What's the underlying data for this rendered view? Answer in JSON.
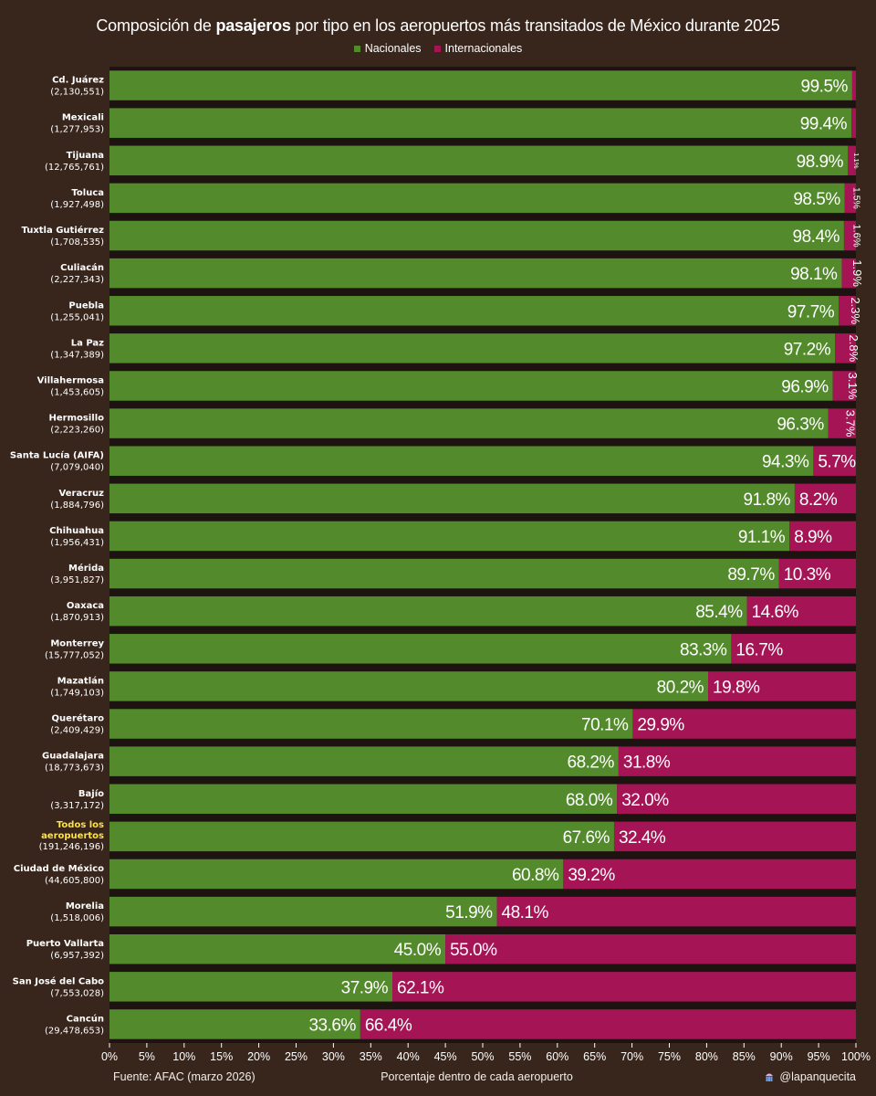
{
  "title": {
    "before": "Composición de ",
    "bold": "pasajeros",
    "after": " por tipo en los aeropuertos más transitados de México durante 2025"
  },
  "legend": {
    "nacionales": "Nacionales",
    "internacionales": "Internacionales"
  },
  "colors": {
    "background": "#38251b",
    "plot_background": "#1d1310",
    "nacionales": "#538a2c",
    "internacionales": "#a51556",
    "highlight": "#ffe23b"
  },
  "footer": {
    "source": "Fuente: AFAC (marzo 2026)",
    "xlabel": "Porcentaje dentro de cada aeropuerto",
    "credit": "@lapanquecita"
  },
  "chart_data": {
    "type": "bar",
    "orientation": "horizontal",
    "stacked": true,
    "title": "Composición de pasajeros por tipo en los aeropuertos más transitados de México durante 2025",
    "xlabel": "Porcentaje dentro de cada aeropuerto",
    "xlim": [
      0,
      100
    ],
    "xticks": [
      "0%",
      "5%",
      "10%",
      "15%",
      "20%",
      "25%",
      "30%",
      "35%",
      "40%",
      "45%",
      "50%",
      "55%",
      "60%",
      "65%",
      "70%",
      "75%",
      "80%",
      "85%",
      "90%",
      "95%",
      "100%"
    ],
    "categories": [
      {
        "name": "Cd. Juárez",
        "total": "(2,130,551)"
      },
      {
        "name": "Mexicali",
        "total": "(1,277,953)"
      },
      {
        "name": "Tijuana",
        "total": "(12,765,761)"
      },
      {
        "name": "Toluca",
        "total": "(1,927,498)"
      },
      {
        "name": "Tuxtla Gutiérrez",
        "total": "(1,708,535)"
      },
      {
        "name": "Culiacán",
        "total": "(2,227,343)"
      },
      {
        "name": "Puebla",
        "total": "(1,255,041)"
      },
      {
        "name": "La Paz",
        "total": "(1,347,389)"
      },
      {
        "name": "Villahermosa",
        "total": "(1,453,605)"
      },
      {
        "name": "Hermosillo",
        "total": "(2,223,260)"
      },
      {
        "name": "Santa Lucía (AIFA)",
        "total": "(7,079,040)"
      },
      {
        "name": "Veracruz",
        "total": "(1,884,796)"
      },
      {
        "name": "Chihuahua",
        "total": "(1,956,431)"
      },
      {
        "name": "Mérida",
        "total": "(3,951,827)"
      },
      {
        "name": "Oaxaca",
        "total": "(1,870,913)"
      },
      {
        "name": "Monterrey",
        "total": "(15,777,052)"
      },
      {
        "name": "Mazatlán",
        "total": "(1,749,103)"
      },
      {
        "name": "Querétaro",
        "total": "(2,409,429)"
      },
      {
        "name": "Guadalajara",
        "total": "(18,773,673)"
      },
      {
        "name": "Bajío",
        "total": "(3,317,172)"
      },
      {
        "name": "Todos los aeropuertos",
        "total": "(191,246,196)",
        "highlight": true
      },
      {
        "name": "Ciudad de México",
        "total": "(44,605,800)"
      },
      {
        "name": "Morelia",
        "total": "(1,518,006)"
      },
      {
        "name": "Puerto Vallarta",
        "total": "(6,957,392)"
      },
      {
        "name": "San José del Cabo",
        "total": "(7,553,028)"
      },
      {
        "name": "Cancún",
        "total": "(29,478,653)"
      }
    ],
    "series": [
      {
        "name": "Nacionales",
        "values": [
          99.5,
          99.4,
          98.9,
          98.5,
          98.4,
          98.1,
          97.7,
          97.2,
          96.9,
          96.3,
          94.3,
          91.8,
          91.1,
          89.7,
          85.4,
          83.3,
          80.2,
          70.1,
          68.2,
          68.0,
          67.6,
          60.8,
          51.9,
          45.0,
          37.9,
          33.6
        ],
        "labels": [
          "99.5%",
          "99.4%",
          "98.9%",
          "98.5%",
          "98.4%",
          "98.1%",
          "97.7%",
          "97.2%",
          "96.9%",
          "96.3%",
          "94.3%",
          "91.8%",
          "91.1%",
          "89.7%",
          "85.4%",
          "83.3%",
          "80.2%",
          "70.1%",
          "68.2%",
          "68.0%",
          "67.6%",
          "60.8%",
          "51.9%",
          "45.0%",
          "37.9%",
          "33.6%"
        ]
      },
      {
        "name": "Internacionales",
        "values": [
          0.5,
          0.6,
          1.1,
          1.5,
          1.6,
          1.9,
          2.3,
          2.8,
          3.1,
          3.7,
          5.7,
          8.2,
          8.9,
          10.3,
          14.6,
          16.7,
          19.8,
          29.9,
          31.8,
          32.0,
          32.4,
          39.2,
          48.1,
          55.0,
          62.1,
          66.4
        ],
        "labels": [
          "",
          "",
          "1.1%",
          "1.5%",
          "1.6%",
          "1.9%",
          "2.3%",
          "2.8%",
          "3.1%",
          "3.7%",
          "5.7%",
          "8.2%",
          "8.9%",
          "10.3%",
          "14.6%",
          "16.7%",
          "19.8%",
          "29.9%",
          "31.8%",
          "32.0%",
          "32.4%",
          "39.2%",
          "48.1%",
          "55.0%",
          "62.1%",
          "66.4%"
        ]
      }
    ]
  }
}
